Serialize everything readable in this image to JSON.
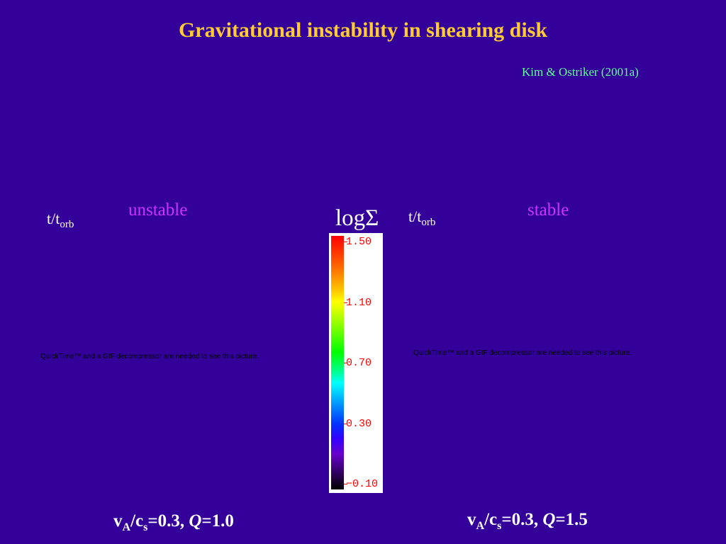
{
  "slide": {
    "title": "Gravitational instability in shearing disk",
    "credit": "Kim & Ostriker (2001a)"
  },
  "left_panel": {
    "time_label_main": "t/t",
    "time_label_sub": "orb",
    "state": "unstable",
    "placeholder_notice": "QuickTime™ and a GIF decompressor are needed to see this picture.",
    "caption": {
      "v": "v",
      "v_sub": "A",
      "c": "/c",
      "c_sub": "s",
      "ratio": "=0.3, ",
      "q": "Q",
      "q_value": "=1.0"
    }
  },
  "right_panel": {
    "time_label_main": "t/t",
    "time_label_sub": "orb",
    "state": "stable",
    "placeholder_notice": "QuickTime™ and a GIF decompressor are needed to see this picture.",
    "caption": {
      "v": "v",
      "v_sub": "A",
      "c": "/c",
      "c_sub": "s",
      "ratio": "=0.3, ",
      "q": "Q",
      "q_value": "=1.5"
    }
  },
  "colorbar": {
    "label": "logΣ",
    "ticks": [
      "1.50",
      "1.10",
      "0.70",
      "0.30",
      "−0.10"
    ],
    "tick_values": [
      1.5,
      1.1,
      0.7,
      0.3,
      -0.1
    ],
    "range": [
      -0.1,
      1.5
    ],
    "tick_color": "#ff0000"
  },
  "colors": {
    "background": "#330099",
    "title": "#ffcc33",
    "credit": "#66ff99",
    "state_label": "#cc33ff"
  }
}
